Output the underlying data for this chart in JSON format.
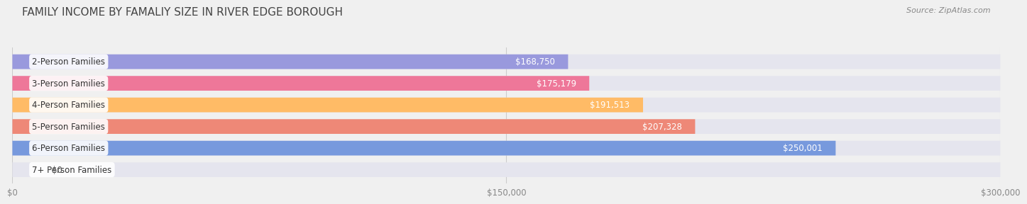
{
  "title": "FAMILY INCOME BY FAMALIY SIZE IN RIVER EDGE BOROUGH",
  "source": "Source: ZipAtlas.com",
  "categories": [
    "2-Person Families",
    "3-Person Families",
    "4-Person Families",
    "5-Person Families",
    "6-Person Families",
    "7+ Person Families"
  ],
  "values": [
    168750,
    175179,
    191513,
    207328,
    250001,
    0
  ],
  "bar_colors": [
    "#9999dd",
    "#ee7799",
    "#ffbb66",
    "#ee8877",
    "#7799dd",
    "#cc99cc"
  ],
  "value_labels": [
    "$168,750",
    "$175,179",
    "$191,513",
    "$207,328",
    "$250,001",
    "$0"
  ],
  "x_max": 300000,
  "x_tick_labels": [
    "$0",
    "$150,000",
    "$300,000"
  ],
  "background_color": "#f0f0f0",
  "bar_bg_color": "#e5e5ee",
  "title_fontsize": 11,
  "source_fontsize": 8,
  "label_fontsize": 8.5,
  "value_fontsize": 8.5
}
